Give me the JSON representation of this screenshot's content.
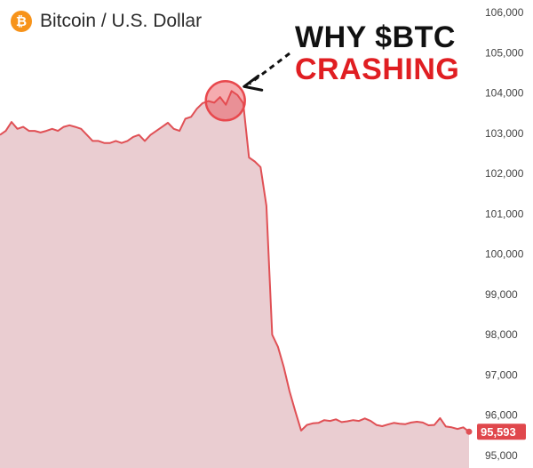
{
  "header": {
    "icon": "bitcoin-icon",
    "icon_glyph": "₿",
    "title": "Bitcoin / U.S. Dollar"
  },
  "annotation": {
    "line1": "WHY $BTC",
    "line2": "CRASHING"
  },
  "colors": {
    "line": "#e05055",
    "fill": "#eacdd1",
    "badge": "#e0474c",
    "circle": "#e8484d",
    "headline_red": "#e01e22",
    "bitcoin_orange": "#f7931a"
  },
  "chart_data": {
    "type": "area",
    "title": "",
    "xlabel": "",
    "ylabel": "",
    "ylim": [
      94800,
      106000
    ],
    "yticks": [
      "106,000",
      "105,000",
      "104,000",
      "103,000",
      "102,000",
      "101,000",
      "100,000",
      "99,000",
      "98,000",
      "97,000",
      "96,000",
      "95,000"
    ],
    "ytick_values": [
      106000,
      105000,
      104000,
      103000,
      102000,
      101000,
      100000,
      99000,
      98000,
      97000,
      96000,
      95000
    ],
    "y_axis_position": "right",
    "grid": false,
    "last_price_label": "95,593",
    "last_price": 95593,
    "series": [
      {
        "values": [
          102960,
          103060,
          103280,
          103110,
          103160,
          103060,
          103060,
          103020,
          103060,
          103110,
          103060,
          103160,
          103200,
          103160,
          103110,
          102960,
          102810,
          102810,
          102760,
          102760,
          102810,
          102760,
          102810,
          102910,
          102960,
          102810,
          102960,
          103060,
          103160,
          103260,
          103110,
          103060,
          103360,
          103410,
          103610,
          103750,
          103800,
          103760,
          103900,
          103710,
          104050,
          103950,
          103750,
          102400,
          102300,
          102160,
          101200,
          98000,
          97700,
          97200,
          96600,
          96100,
          95620,
          95760,
          95800,
          95810,
          95880,
          95860,
          95900,
          95830,
          95850,
          95880,
          95860,
          95920,
          95860,
          95760,
          95730,
          95770,
          95810,
          95790,
          95780,
          95820,
          95840,
          95820,
          95750,
          95760,
          95930,
          95720,
          95700,
          95660,
          95700,
          95593
        ]
      }
    ]
  }
}
